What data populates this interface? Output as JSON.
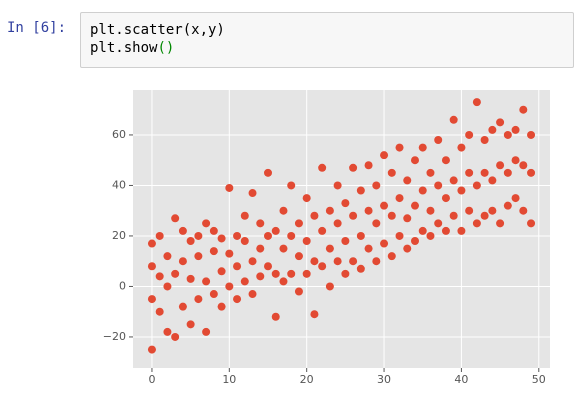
{
  "cell": {
    "prompt": "In [6]:",
    "code": [
      [
        "plt.scatter(x,y)"
      ],
      [
        "plt.show",
        "()"
      ]
    ]
  },
  "chart_data": {
    "type": "scatter",
    "color": "#e24a33",
    "grid": true,
    "xlim": [
      -2.45,
      51.45
    ],
    "ylim": [
      -32.3,
      77.8
    ],
    "xticks": [
      0,
      10,
      20,
      30,
      40,
      50
    ],
    "yticks": [
      {
        "value": -20,
        "label": "−20"
      },
      0,
      20,
      40,
      60
    ],
    "x": [
      0,
      0,
      0,
      0,
      1,
      1,
      1,
      2,
      2,
      2,
      3,
      3,
      3,
      4,
      4,
      4,
      5,
      5,
      5,
      6,
      6,
      6,
      7,
      7,
      7,
      8,
      8,
      8,
      9,
      9,
      9,
      10,
      10,
      10,
      11,
      11,
      11,
      12,
      12,
      12,
      13,
      13,
      13,
      14,
      14,
      14,
      15,
      15,
      15,
      16,
      16,
      16,
      17,
      17,
      17,
      18,
      18,
      18,
      19,
      19,
      19,
      20,
      20,
      20,
      21,
      21,
      21,
      22,
      22,
      22,
      23,
      23,
      23,
      24,
      24,
      24,
      25,
      25,
      25,
      26,
      26,
      26,
      27,
      27,
      27,
      28,
      28,
      28,
      29,
      29,
      29,
      30,
      30,
      30,
      31,
      31,
      31,
      32,
      32,
      32,
      33,
      33,
      33,
      34,
      34,
      34,
      35,
      35,
      35,
      36,
      36,
      36,
      37,
      37,
      37,
      38,
      38,
      38,
      39,
      39,
      39,
      40,
      40,
      40,
      41,
      41,
      41,
      42,
      42,
      42,
      43,
      43,
      43,
      44,
      44,
      44,
      45,
      45,
      45,
      46,
      46,
      46,
      47,
      47,
      47,
      48,
      48,
      48,
      49,
      49,
      49
    ],
    "y": [
      -25,
      -5,
      8,
      17,
      -10,
      4,
      20,
      -18,
      0,
      12,
      -20,
      5,
      27,
      -8,
      10,
      22,
      -15,
      3,
      18,
      -5,
      12,
      20,
      -18,
      2,
      25,
      -3,
      14,
      22,
      -8,
      6,
      19,
      0,
      13,
      39,
      -5,
      8,
      20,
      2,
      18,
      28,
      -3,
      10,
      37,
      4,
      15,
      25,
      45,
      8,
      20,
      -12,
      5,
      22,
      2,
      15,
      30,
      5,
      20,
      40,
      -2,
      12,
      25,
      5,
      18,
      35,
      -11,
      10,
      28,
      8,
      22,
      47,
      0,
      15,
      30,
      10,
      25,
      40,
      5,
      18,
      33,
      10,
      28,
      47,
      7,
      20,
      38,
      15,
      30,
      48,
      10,
      25,
      40,
      17,
      32,
      52,
      12,
      28,
      45,
      20,
      35,
      55,
      15,
      27,
      42,
      18,
      32,
      50,
      22,
      38,
      55,
      20,
      30,
      45,
      25,
      40,
      58,
      22,
      35,
      50,
      28,
      42,
      66,
      22,
      38,
      55,
      30,
      45,
      60,
      25,
      40,
      73,
      28,
      45,
      58,
      30,
      42,
      62,
      25,
      48,
      65,
      32,
      45,
      60,
      35,
      50,
      62,
      30,
      48,
      70,
      25,
      45,
      60
    ]
  }
}
